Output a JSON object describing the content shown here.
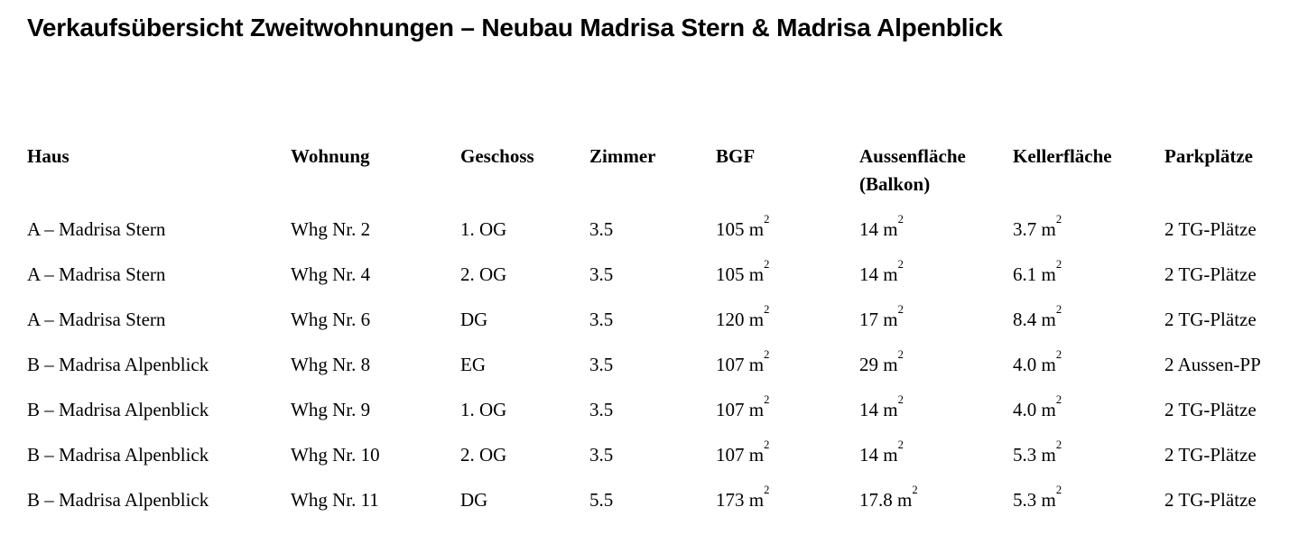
{
  "title": "Verkaufsübersicht Zweitwohnungen – Neubau Madrisa Stern & Madrisa Alpenblick",
  "colors": {
    "background": "#ffffff",
    "text": "#000000"
  },
  "table": {
    "columns": [
      {
        "id": "haus",
        "label": "Haus"
      },
      {
        "id": "wohnung",
        "label": "Wohnung"
      },
      {
        "id": "geschoss",
        "label": "Geschoss"
      },
      {
        "id": "zimmer",
        "label": "Zimmer"
      },
      {
        "id": "bgf",
        "label": "BGF"
      },
      {
        "id": "aussenflaeche",
        "label": "Aussenfläche",
        "label2": "(Balkon)"
      },
      {
        "id": "kellerflaeche",
        "label": "Kellerfläche"
      },
      {
        "id": "parkplaetze",
        "label": "Parkplätze"
      }
    ],
    "rows": [
      [
        "A – Madrisa Stern",
        "Whg Nr. 2",
        "1. OG",
        "3.5",
        "105 m²",
        "14 m²",
        "3.7 m²",
        "2 TG-Plätze"
      ],
      [
        "A – Madrisa Stern",
        "Whg Nr. 4",
        "2. OG",
        "3.5",
        "105 m²",
        "14 m²",
        "6.1 m²",
        "2 TG-Plätze"
      ],
      [
        "A – Madrisa Stern",
        "Whg Nr. 6",
        "DG",
        "3.5",
        "120 m²",
        "17 m²",
        "8.4 m²",
        "2 TG-Plätze"
      ],
      [
        "B – Madrisa Alpenblick",
        "Whg Nr. 8",
        "EG",
        "3.5",
        "107 m²",
        "29 m²",
        "4.0 m²",
        "2 Aussen-PP"
      ],
      [
        "B – Madrisa Alpenblick",
        "Whg Nr. 9",
        "1. OG",
        "3.5",
        "107 m²",
        "14 m²",
        "4.0 m²",
        "2 TG-Plätze"
      ],
      [
        "B – Madrisa Alpenblick",
        "Whg Nr. 10",
        "2. OG",
        "3.5",
        "107 m²",
        "14 m²",
        "5.3 m²",
        "2 TG-Plätze"
      ],
      [
        "B – Madrisa Alpenblick",
        "Whg Nr. 11",
        "DG",
        "5.5",
        "173 m²",
        "17.8 m²",
        "5.3 m²",
        "2 TG-Plätze"
      ]
    ]
  }
}
